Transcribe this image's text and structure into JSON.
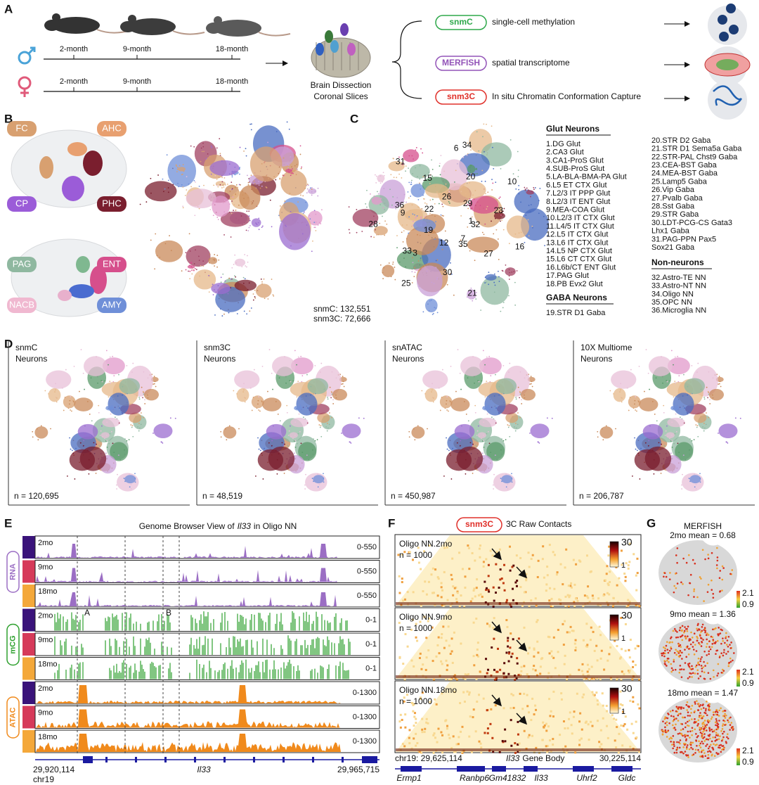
{
  "panel_labels": [
    "A",
    "B",
    "C",
    "D",
    "E",
    "F",
    "G"
  ],
  "A": {
    "male_ages": [
      "2-month",
      "9-month",
      "18-month"
    ],
    "female_ages": [
      "2-month",
      "9-month",
      "18-month"
    ],
    "dissection": [
      "Brain Dissection",
      "Coronal Slices"
    ],
    "methods": [
      {
        "name": "snmC",
        "desc": "single-cell methylation"
      },
      {
        "name": "MERFISH",
        "desc": "spatial transcriptome"
      },
      {
        "name": "snm3C",
        "desc": "In situ Chromatin Conformation Capture"
      }
    ]
  },
  "B": {
    "regions": [
      "FC",
      "AHC",
      "CP",
      "PHC",
      "PAG",
      "ENT",
      "NACB",
      "AMY"
    ],
    "counts": [
      "snmC: 132,551",
      "snm3C: 72,666"
    ]
  },
  "C": {
    "plot_labels": [
      "1",
      "3",
      "6",
      "7",
      "9",
      "10",
      "12",
      "15",
      "16",
      "19",
      "20",
      "21",
      "22",
      "23",
      "25",
      "26",
      "27",
      "28",
      "29",
      "30",
      "31",
      "32",
      "33",
      "34",
      "35",
      "36"
    ],
    "glut_header": "Glut Neurons",
    "glut_items": [
      "1.DG Glut",
      "2.CA3 Glut",
      "3.CA1-ProS Glut",
      "4.SUB-ProS Glut",
      "5.LA-BLA-BMA-PA Glut",
      "6.L5 ET CTX Glut",
      "7.L2/3 IT PPP Glut",
      "8.L2/3 IT ENT Glut",
      "9.MEA-COA Glut",
      "10.L2/3 IT CTX Glut",
      "11.L4/5 IT CTX Glut",
      "12.L5 IT CTX Glut",
      "13.L6 IT CTX Glut",
      "14.L5 NP CTX Glut",
      "15.L6 CT CTX Glut",
      "16.L6b/CT ENT Glut",
      "17.PAG Glut",
      "18.PB Evx2 Glut"
    ],
    "gaba_header": "GABA Neurons",
    "gaba_items": [
      "19.STR D1 Gaba"
    ],
    "gaba_items_cont": [
      "20.STR D2 Gaba",
      "21.STR D1 Sema5a Gaba",
      "22.STR-PAL Chst9 Gaba",
      "23.CEA-BST Gaba",
      "24.MEA-BST Gaba",
      "25.Lamp5 Gaba",
      "26.Vip Gaba",
      "27.Pvalb Gaba",
      "28.Sst Gaba",
      "29.STR Gaba",
      "30.LDT-PCG-CS Gata3",
      "Lhx1 Gaba",
      "31.PAG-PPN Pax5",
      "Sox21 Gaba"
    ],
    "nn_header": "Non-neurons",
    "nn_items": [
      "32.Astro-TE NN",
      "33.Astro-NT NN",
      "34.Oligo NN",
      "35.OPC NN",
      "36.Microglia NN"
    ]
  },
  "D": {
    "panels": [
      {
        "title": [
          "snmC",
          "Neurons"
        ],
        "n": "n = 120,695"
      },
      {
        "title": [
          "snm3C",
          "Neurons"
        ],
        "n": "n = 48,519"
      },
      {
        "title": [
          "snATAC",
          "Neurons"
        ],
        "n": "n = 450,987"
      },
      {
        "title": [
          "10X Multiome",
          "Neurons"
        ],
        "n": "n = 206,787"
      }
    ]
  },
  "E": {
    "title_parts": [
      "Genome Browser View of",
      "Il33",
      "in Oligo NN"
    ],
    "groups": [
      {
        "name": "RNA",
        "tracks": [
          {
            "age": "2mo",
            "range": "0-550"
          },
          {
            "age": "9mo",
            "range": "0-550"
          },
          {
            "age": "18mo",
            "range": "0-550"
          }
        ]
      },
      {
        "name": "mCG",
        "tracks": [
          {
            "age": "2mo",
            "range": "0-1"
          },
          {
            "age": "9mo",
            "range": "0-1"
          },
          {
            "age": "18mo",
            "range": "0-1"
          }
        ]
      },
      {
        "name": "ATAC",
        "tracks": [
          {
            "age": "2mo",
            "range": "0-1300"
          },
          {
            "age": "9mo",
            "range": "0-1300"
          },
          {
            "age": "18mo",
            "range": "0-1300"
          }
        ]
      }
    ],
    "markers": [
      "A",
      "B"
    ],
    "start": "29,920,114",
    "end": "29,965,715",
    "chrom": "chr19",
    "gene": "Il33"
  },
  "F": {
    "badge": "snm3C",
    "title": "3C Raw Contacts",
    "panels": [
      {
        "name": "Oligo NN.2mo",
        "n": "n = 1000",
        "max": "30",
        "min": "1"
      },
      {
        "name": "Oligo NN.9mo",
        "n": "n = 1000",
        "max": "30",
        "min": "1"
      },
      {
        "name": "Oligo NN.18mo",
        "n": "n = 1000",
        "max": "30",
        "min": "1"
      }
    ],
    "start": "chr19: 29,625,114",
    "end": "30,225,114",
    "gene_body": [
      "Il33",
      "Gene Body"
    ],
    "genes": [
      "Ermp1",
      "Ranbp6",
      "Gm41832",
      "Il33",
      "Uhrf2",
      "Gldc"
    ]
  },
  "G": {
    "title": "MERFISH",
    "panels": [
      {
        "label": "2mo mean = 0.68",
        "max": "2.1",
        "min": "0.9"
      },
      {
        "label": "9mo mean = 1.36",
        "max": "2.1",
        "min": "0.9"
      },
      {
        "label": "18mo mean = 1.47",
        "max": "2.1",
        "min": "0.9"
      }
    ]
  }
}
